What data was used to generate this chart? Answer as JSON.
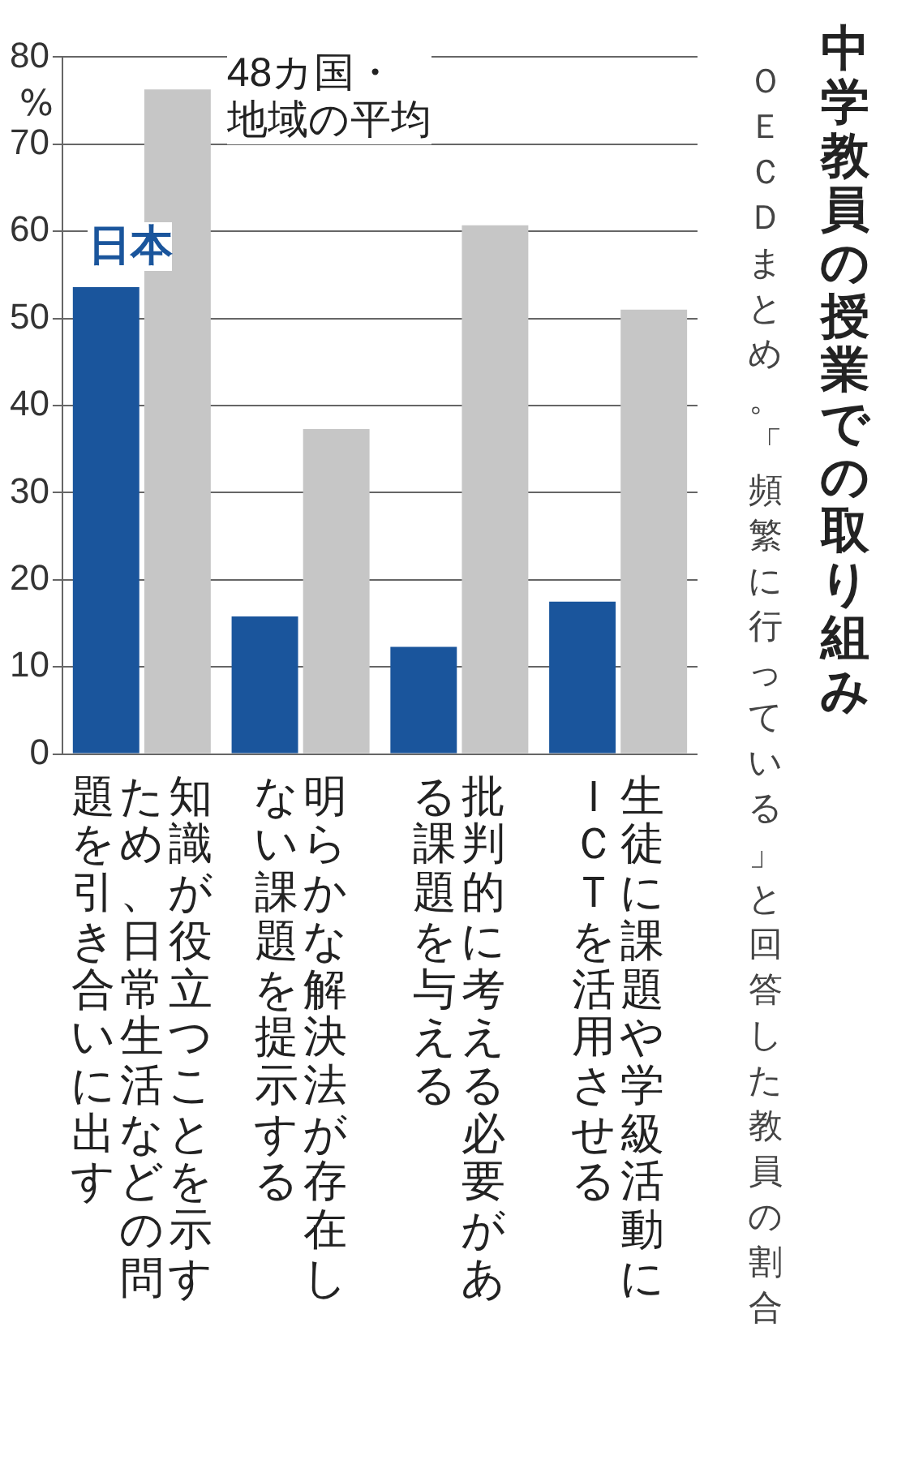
{
  "chart_data": {
    "type": "bar",
    "title": "中学教員の授業での取り組み",
    "subtitle": "ＯＥＣＤまとめ。「頻繁に行っている」と回答した教員の割合",
    "ylabel": "%",
    "categories": [
      "知識が役立つことを示すため、日常生活などの問題を引き合いに出す",
      "明らかな解決法が存在しない課題を提示する",
      "批判的に考える必要がある課題を与える",
      "生徒に課題や学級活動にＩＣＴを活用させる"
    ],
    "series": [
      {
        "name": "日本",
        "color": "#1a559c",
        "values": [
          53.6,
          15.8,
          12.3,
          17.5
        ]
      },
      {
        "name": "48カ国・地域の平均",
        "color": "#c6c6c6",
        "values": [
          76.3,
          37.3,
          60.7,
          51.0
        ]
      }
    ],
    "ylim": [
      0,
      80
    ],
    "yticks": [
      0,
      10,
      20,
      30,
      40,
      50,
      60,
      70,
      80
    ],
    "grid": "y",
    "legend": false
  }
}
